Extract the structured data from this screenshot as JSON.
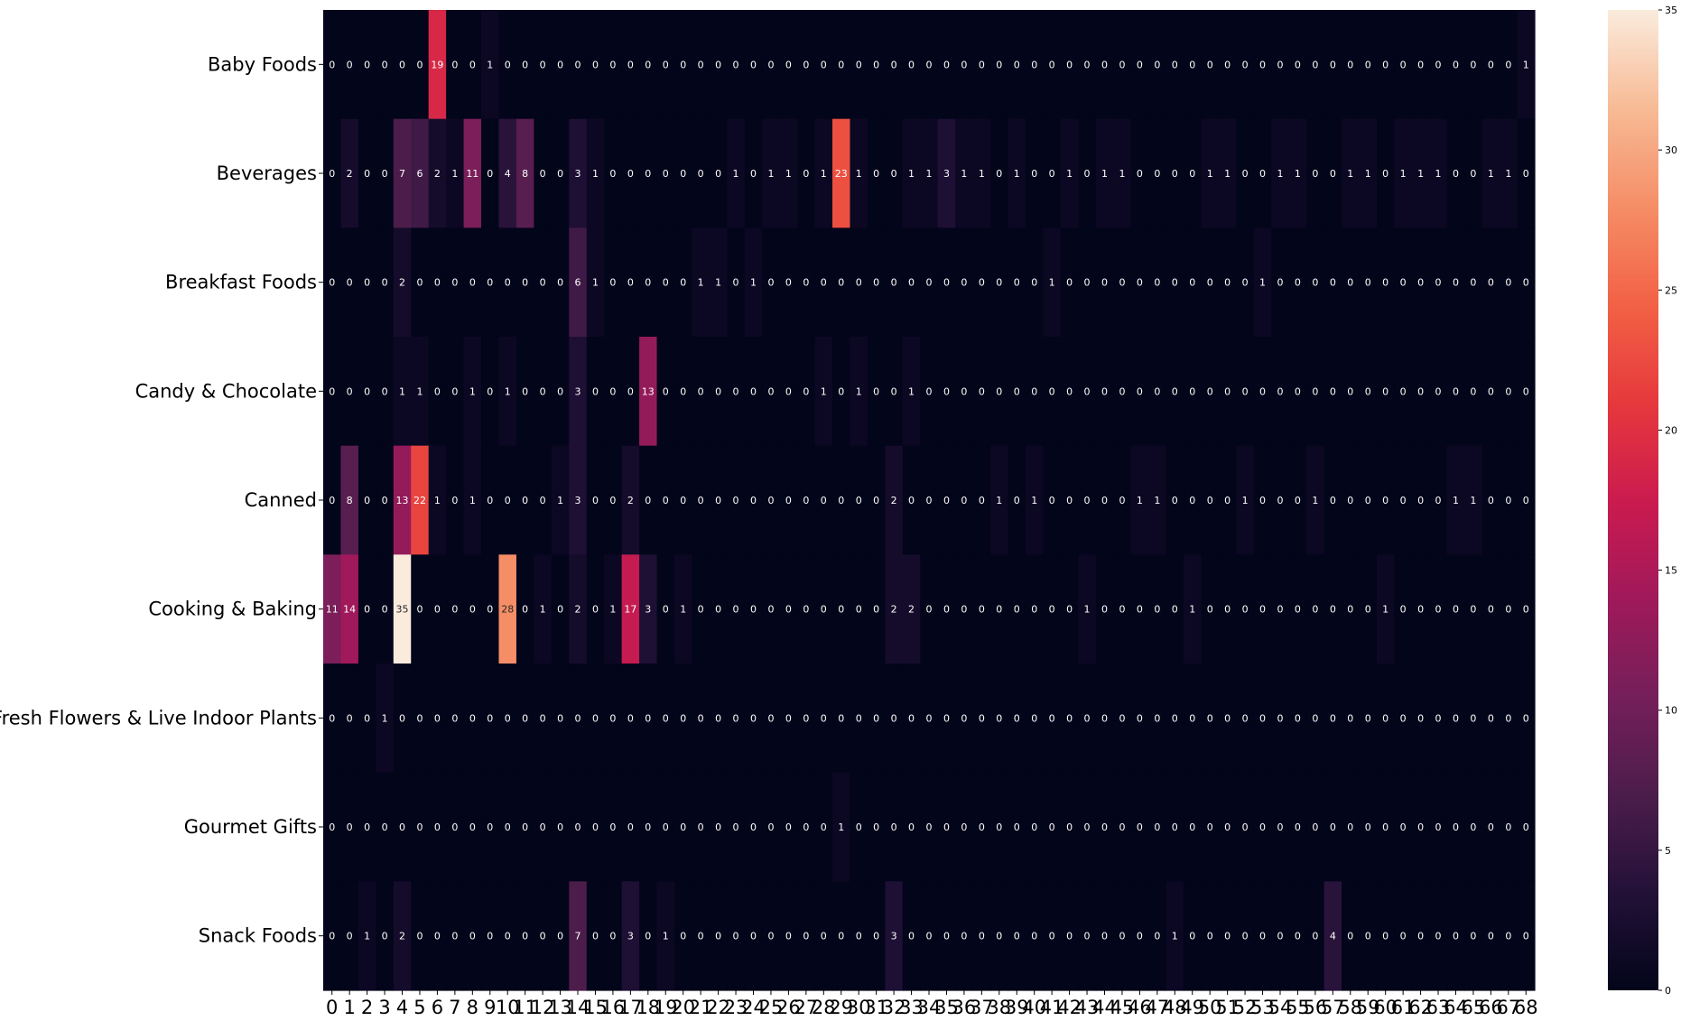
{
  "chart_data": {
    "type": "heatmap",
    "title": "",
    "xlabel": "",
    "ylabel": "",
    "rows": [
      "Baby Foods",
      "Beverages",
      "Breakfast Foods",
      "Candy & Chocolate",
      "Canned",
      "Cooking & Baking",
      "Fresh Flowers & Live Indoor Plants",
      "Gourmet Gifts",
      "Snack Foods"
    ],
    "columns": [
      "0",
      "1",
      "2",
      "3",
      "4",
      "5",
      "6",
      "7",
      "8",
      "9",
      "10",
      "11",
      "12",
      "13",
      "14",
      "15",
      "16",
      "17",
      "18",
      "19",
      "20",
      "21",
      "22",
      "23",
      "24",
      "25",
      "26",
      "27",
      "28",
      "29",
      "30",
      "31",
      "32",
      "33",
      "34",
      "35",
      "36",
      "37",
      "38",
      "39",
      "40",
      "41",
      "42",
      "43",
      "44",
      "45",
      "46",
      "47",
      "48",
      "49",
      "50",
      "51",
      "52",
      "53",
      "54",
      "55",
      "56",
      "57",
      "58",
      "59",
      "60",
      "61",
      "62",
      "63",
      "64",
      "65",
      "66",
      "67",
      "68"
    ],
    "values": [
      [
        0,
        0,
        0,
        0,
        0,
        0,
        19,
        0,
        0,
        1,
        0,
        0,
        0,
        0,
        0,
        0,
        0,
        0,
        0,
        0,
        0,
        0,
        0,
        0,
        0,
        0,
        0,
        0,
        0,
        0,
        0,
        0,
        0,
        0,
        0,
        0,
        0,
        0,
        0,
        0,
        0,
        0,
        0,
        0,
        0,
        0,
        0,
        0,
        0,
        0,
        0,
        0,
        0,
        0,
        0,
        0,
        0,
        0,
        0,
        0,
        0,
        0,
        0,
        0,
        0,
        0,
        0,
        0,
        1
      ],
      [
        0,
        2,
        0,
        0,
        7,
        6,
        2,
        1,
        11,
        0,
        4,
        8,
        0,
        0,
        3,
        1,
        0,
        0,
        0,
        0,
        0,
        0,
        0,
        1,
        0,
        1,
        1,
        0,
        1,
        23,
        1,
        0,
        0,
        1,
        1,
        3,
        1,
        1,
        0,
        1,
        0,
        0,
        1,
        0,
        1,
        1,
        0,
        0,
        0,
        0,
        1,
        1,
        0,
        0,
        1,
        1,
        0,
        0,
        1,
        1,
        0,
        1,
        1,
        1,
        0,
        0,
        1,
        1,
        0
      ],
      [
        0,
        0,
        0,
        0,
        2,
        0,
        0,
        0,
        0,
        0,
        0,
        0,
        0,
        0,
        6,
        1,
        0,
        0,
        0,
        0,
        0,
        1,
        1,
        0,
        1,
        0,
        0,
        0,
        0,
        0,
        0,
        0,
        0,
        0,
        0,
        0,
        0,
        0,
        0,
        0,
        0,
        1,
        0,
        0,
        0,
        0,
        0,
        0,
        0,
        0,
        0,
        0,
        0,
        1,
        0,
        0,
        0,
        0,
        0,
        0,
        0,
        0,
        0,
        0,
        0,
        0,
        0,
        0,
        0
      ],
      [
        0,
        0,
        0,
        0,
        1,
        1,
        0,
        0,
        1,
        0,
        1,
        0,
        0,
        0,
        3,
        0,
        0,
        0,
        13,
        0,
        0,
        0,
        0,
        0,
        0,
        0,
        0,
        0,
        1,
        0,
        1,
        0,
        0,
        1,
        0,
        0,
        0,
        0,
        0,
        0,
        0,
        0,
        0,
        0,
        0,
        0,
        0,
        0,
        0,
        0,
        0,
        0,
        0,
        0,
        0,
        0,
        0,
        0,
        0,
        0,
        0,
        0,
        0,
        0,
        0,
        0,
        0,
        0,
        0
      ],
      [
        0,
        8,
        0,
        0,
        13,
        22,
        1,
        0,
        1,
        0,
        0,
        0,
        0,
        1,
        3,
        0,
        0,
        2,
        0,
        0,
        0,
        0,
        0,
        0,
        0,
        0,
        0,
        0,
        0,
        0,
        0,
        0,
        2,
        0,
        0,
        0,
        0,
        0,
        1,
        0,
        1,
        0,
        0,
        0,
        0,
        0,
        1,
        1,
        0,
        0,
        0,
        0,
        1,
        0,
        0,
        0,
        1,
        0,
        0,
        0,
        0,
        0,
        0,
        0,
        1,
        1,
        0,
        0,
        0
      ],
      [
        11,
        14,
        0,
        0,
        35,
        0,
        0,
        0,
        0,
        0,
        28,
        0,
        1,
        0,
        2,
        0,
        1,
        17,
        3,
        0,
        1,
        0,
        0,
        0,
        0,
        0,
        0,
        0,
        0,
        0,
        0,
        0,
        2,
        2,
        0,
        0,
        0,
        0,
        0,
        0,
        0,
        0,
        0,
        1,
        0,
        0,
        0,
        0,
        0,
        1,
        0,
        0,
        0,
        0,
        0,
        0,
        0,
        0,
        0,
        0,
        1,
        0,
        0,
        0,
        0,
        0,
        0,
        0,
        0
      ],
      [
        0,
        0,
        0,
        1,
        0,
        0,
        0,
        0,
        0,
        0,
        0,
        0,
        0,
        0,
        0,
        0,
        0,
        0,
        0,
        0,
        0,
        0,
        0,
        0,
        0,
        0,
        0,
        0,
        0,
        0,
        0,
        0,
        0,
        0,
        0,
        0,
        0,
        0,
        0,
        0,
        0,
        0,
        0,
        0,
        0,
        0,
        0,
        0,
        0,
        0,
        0,
        0,
        0,
        0,
        0,
        0,
        0,
        0,
        0,
        0,
        0,
        0,
        0,
        0,
        0,
        0,
        0,
        0,
        0
      ],
      [
        0,
        0,
        0,
        0,
        0,
        0,
        0,
        0,
        0,
        0,
        0,
        0,
        0,
        0,
        0,
        0,
        0,
        0,
        0,
        0,
        0,
        0,
        0,
        0,
        0,
        0,
        0,
        0,
        0,
        1,
        0,
        0,
        0,
        0,
        0,
        0,
        0,
        0,
        0,
        0,
        0,
        0,
        0,
        0,
        0,
        0,
        0,
        0,
        0,
        0,
        0,
        0,
        0,
        0,
        0,
        0,
        0,
        0,
        0,
        0,
        0,
        0,
        0,
        0,
        0,
        0,
        0,
        0,
        0
      ],
      [
        0,
        0,
        1,
        0,
        2,
        0,
        0,
        0,
        0,
        0,
        0,
        0,
        0,
        0,
        7,
        0,
        0,
        3,
        0,
        1,
        0,
        0,
        0,
        0,
        0,
        0,
        0,
        0,
        0,
        0,
        0,
        0,
        3,
        0,
        0,
        0,
        0,
        0,
        0,
        0,
        0,
        0,
        0,
        0,
        0,
        0,
        0,
        0,
        1,
        0,
        0,
        0,
        0,
        0,
        0,
        0,
        0,
        4,
        0,
        0,
        0,
        0,
        0,
        0,
        0,
        0,
        0,
        0,
        0
      ]
    ],
    "colorbar": {
      "min": 0,
      "max": 35,
      "ticks": [
        "0",
        "5",
        "10",
        "15",
        "20",
        "25",
        "30",
        "35"
      ],
      "colormap": "rocket"
    },
    "grid": false
  }
}
